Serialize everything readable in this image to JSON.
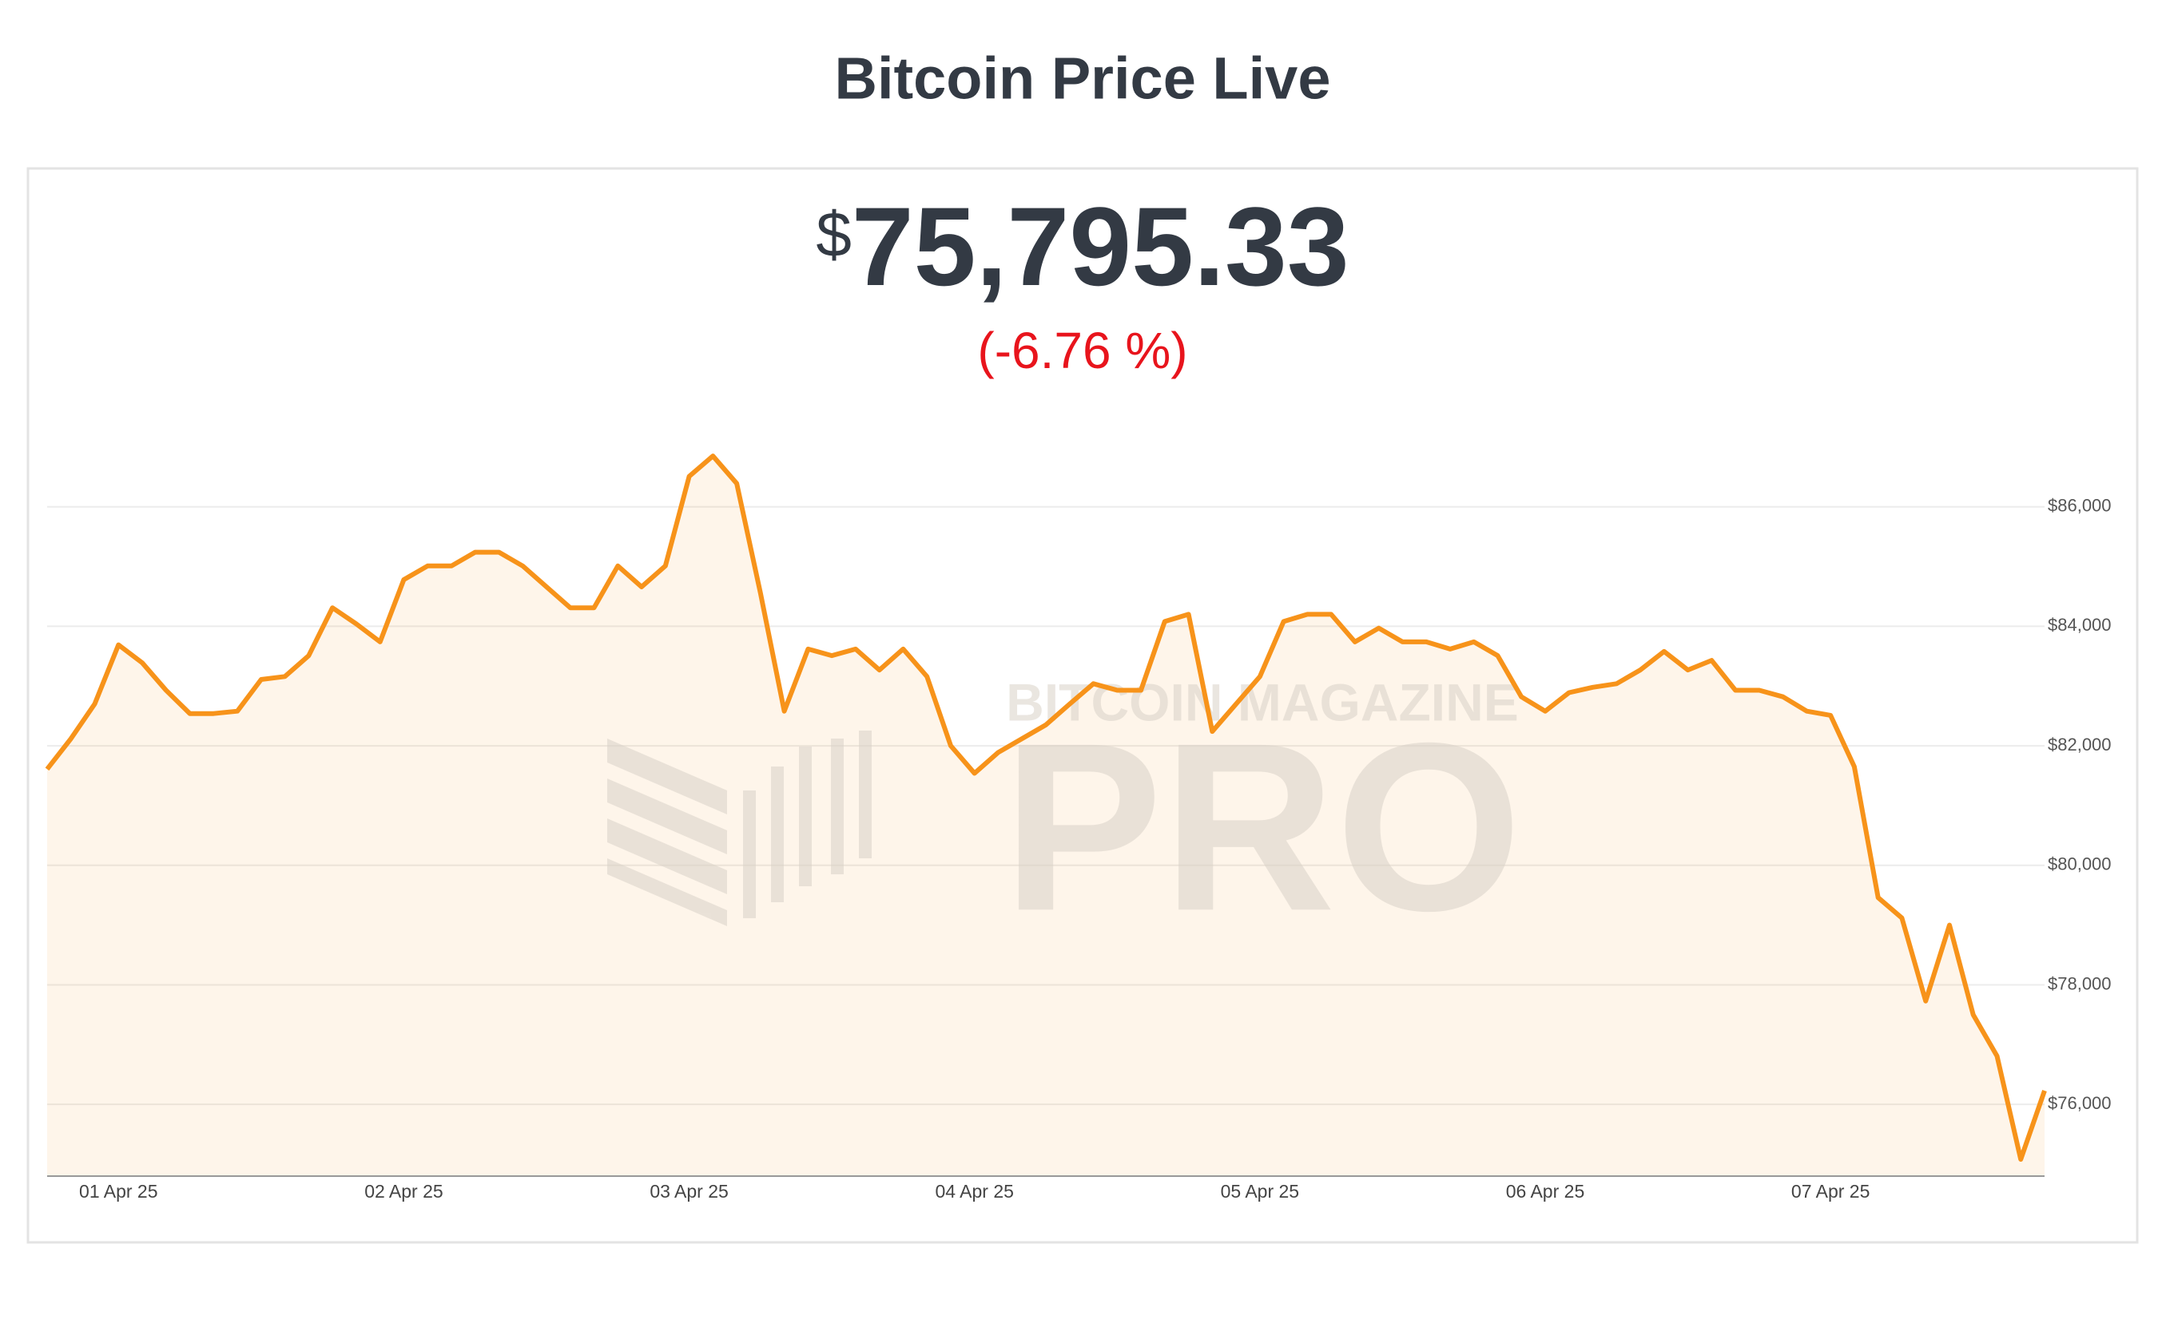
{
  "header": {
    "title": "Bitcoin Price Live",
    "currency": "$",
    "price": "75,795.33",
    "change": "(-6.76 %)"
  },
  "watermark": {
    "top": "BITCOIN MAGAZINE",
    "main": "PRO"
  },
  "chart_data": {
    "type": "line",
    "categories": [
      null,
      null,
      null,
      "01 Apr 25",
      null,
      null,
      null,
      null,
      null,
      null,
      null,
      null,
      null,
      null,
      null,
      "02 Apr 25",
      null,
      null,
      null,
      null,
      null,
      null,
      null,
      null,
      null,
      null,
      null,
      "03 Apr 25",
      null,
      null,
      null,
      null,
      null,
      null,
      null,
      null,
      null,
      null,
      null,
      "04 Apr 25",
      null,
      null,
      null,
      null,
      null,
      null,
      null,
      null,
      null,
      null,
      null,
      "05 Apr 25",
      null,
      null,
      null,
      null,
      null,
      null,
      null,
      null,
      null,
      null,
      null,
      "06 Apr 25",
      null,
      null,
      null,
      null,
      null,
      null,
      null,
      null,
      null,
      null,
      null,
      "07 Apr 25",
      null,
      null,
      null,
      null,
      null,
      null,
      null,
      null,
      null
    ],
    "series": [
      {
        "name": "Bitcoin",
        "color": "#f7931a",
        "values": [
          81610,
          82120,
          82700,
          83690,
          83390,
          82930,
          82540,
          82540,
          82580,
          83110,
          83160,
          83510,
          84310,
          84040,
          83740,
          84780,
          85010,
          85010,
          85240,
          85240,
          85010,
          84660,
          84310,
          84310,
          85010,
          84660,
          85010,
          86510,
          86850,
          86390,
          84550,
          82580,
          83620,
          83510,
          83620,
          83270,
          83620,
          83160,
          82000,
          81540,
          81890,
          82120,
          82350,
          82700,
          83040,
          82930,
          82930,
          84080,
          84200,
          82240,
          82700,
          83160,
          84080,
          84200,
          84200,
          83740,
          83970,
          83740,
          83740,
          83620,
          83740,
          83510,
          82820,
          82580,
          82890,
          82980,
          83040,
          83270,
          83580,
          83270,
          83430,
          82930,
          82930,
          82820,
          82580,
          82510,
          81650,
          79460,
          79120,
          77730,
          79000,
          77500,
          76810,
          75080,
          76230
        ]
      }
    ],
    "ylim": [
      74800,
      87800
    ],
    "yticks": [
      {
        "value": 76000,
        "label": "$76,000"
      },
      {
        "value": 78000,
        "label": "$78,000"
      },
      {
        "value": 80000,
        "label": "$80,000"
      },
      {
        "value": 82000,
        "label": "$82,000"
      },
      {
        "value": 84000,
        "label": "$84,000"
      },
      {
        "value": 86000,
        "label": "$86,000"
      }
    ],
    "grid": true
  }
}
